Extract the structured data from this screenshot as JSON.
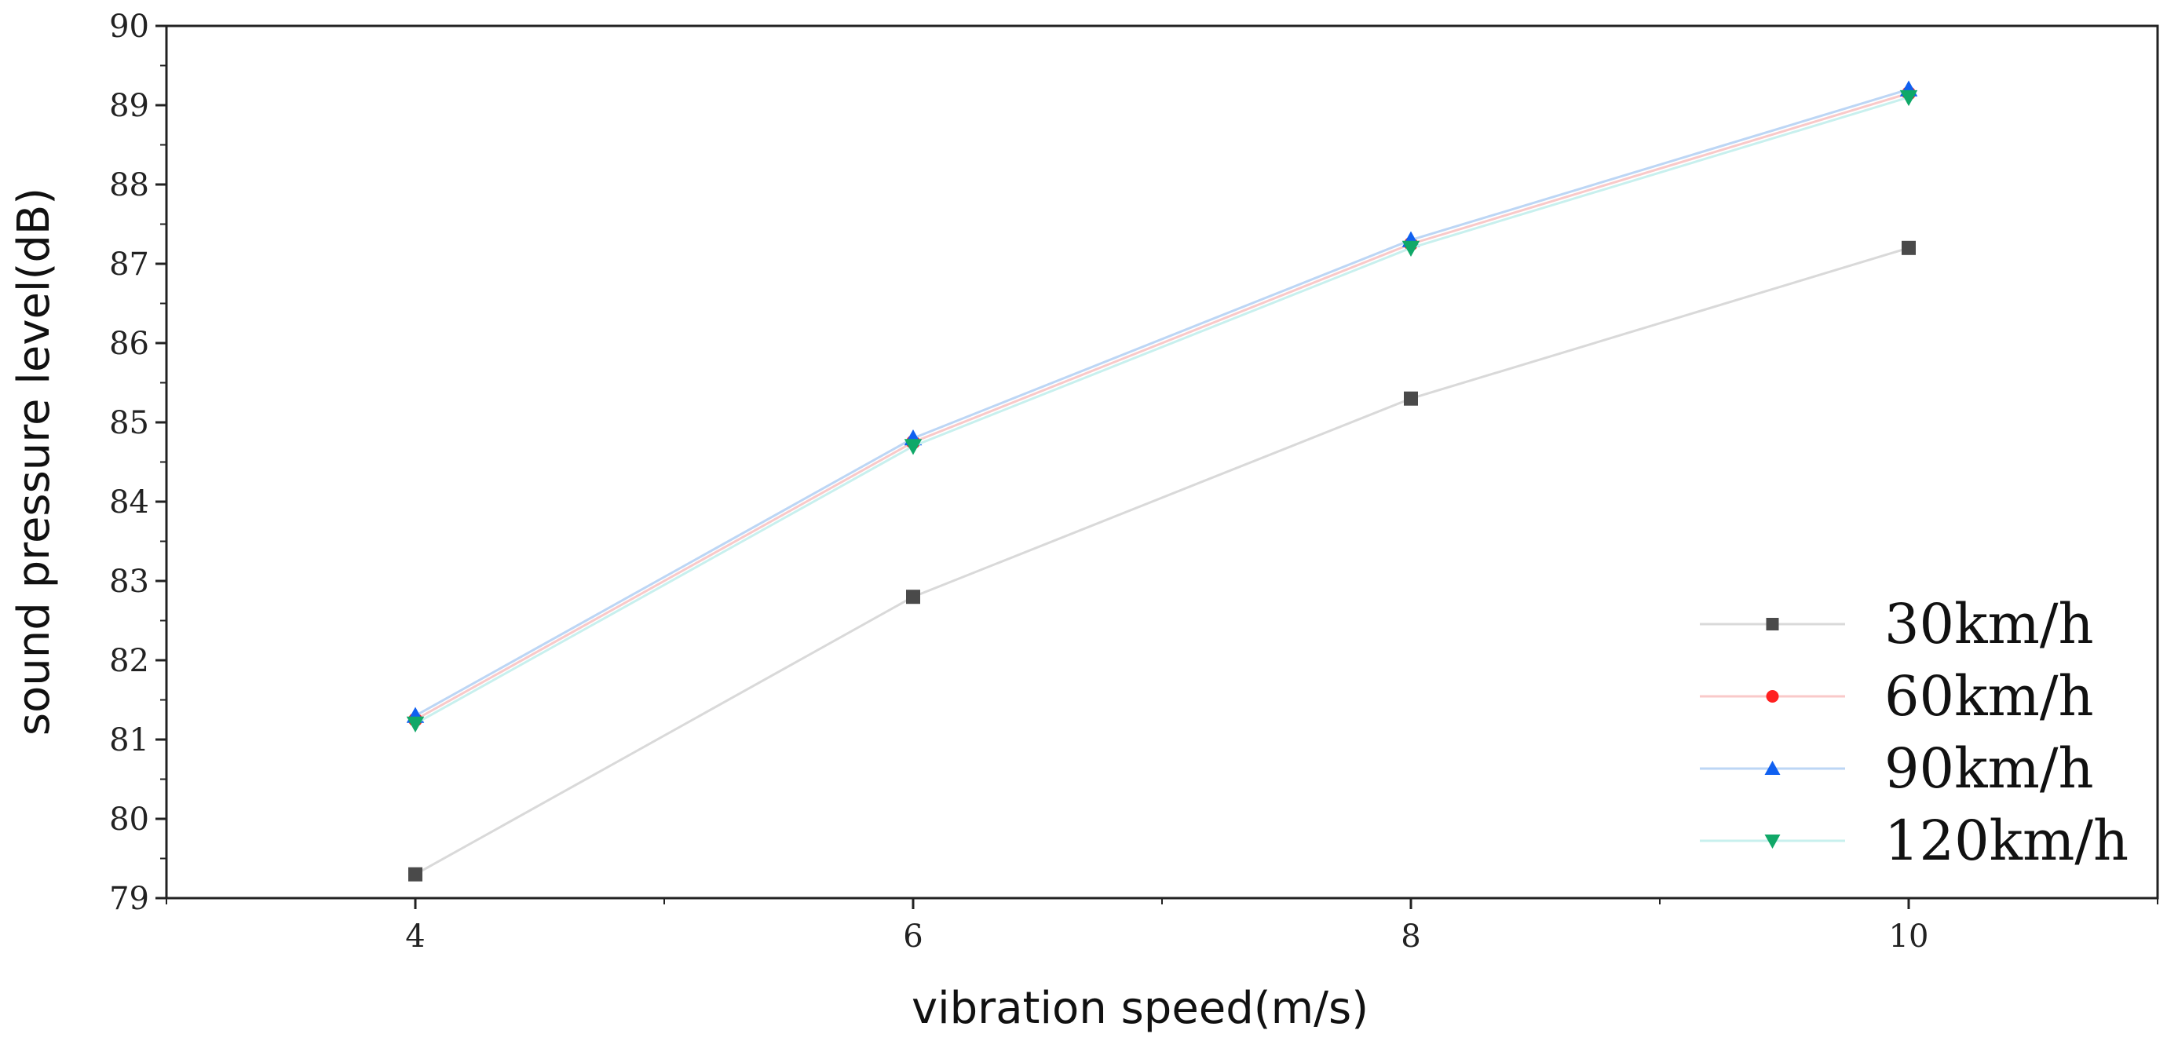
{
  "chart_data": {
    "type": "line",
    "title": "",
    "xlabel": "vibration speed(m/s)",
    "ylabel": "sound pressure level(dB)",
    "x": [
      4,
      6,
      8,
      10
    ],
    "xlim": [
      3,
      11
    ],
    "ylim": [
      79,
      90
    ],
    "xticks": [
      4,
      6,
      8,
      10
    ],
    "xtick_labels": [
      "4",
      "6",
      "8",
      "10"
    ],
    "xminor_ticks": [
      3,
      5,
      7,
      9,
      11
    ],
    "yticks": [
      79,
      80,
      81,
      82,
      83,
      84,
      85,
      86,
      87,
      88,
      89,
      90
    ],
    "ytick_labels": [
      "79",
      "80",
      "81",
      "82",
      "83",
      "84",
      "85",
      "86",
      "87",
      "88",
      "89",
      "90"
    ],
    "grid": false,
    "legend_position": "bottom-right",
    "series": [
      {
        "name": "30km/h",
        "values": [
          79.3,
          82.8,
          85.3,
          87.2
        ],
        "line_color": "#d9d9d9",
        "marker_color": "#4a4a4a",
        "marker": "square"
      },
      {
        "name": "60km/h",
        "values": [
          81.25,
          84.75,
          87.25,
          89.15
        ],
        "line_color": "#f9c9c9",
        "marker_color": "#ff2020",
        "marker": "circle"
      },
      {
        "name": "90km/h",
        "values": [
          81.3,
          84.8,
          87.3,
          89.2
        ],
        "line_color": "#bcd6f5",
        "marker_color": "#1060f0",
        "marker": "triangle-up"
      },
      {
        "name": "120km/h",
        "values": [
          81.2,
          84.7,
          87.2,
          89.1
        ],
        "line_color": "#c8f0ee",
        "marker_color": "#10a868",
        "marker": "triangle-down"
      }
    ]
  }
}
